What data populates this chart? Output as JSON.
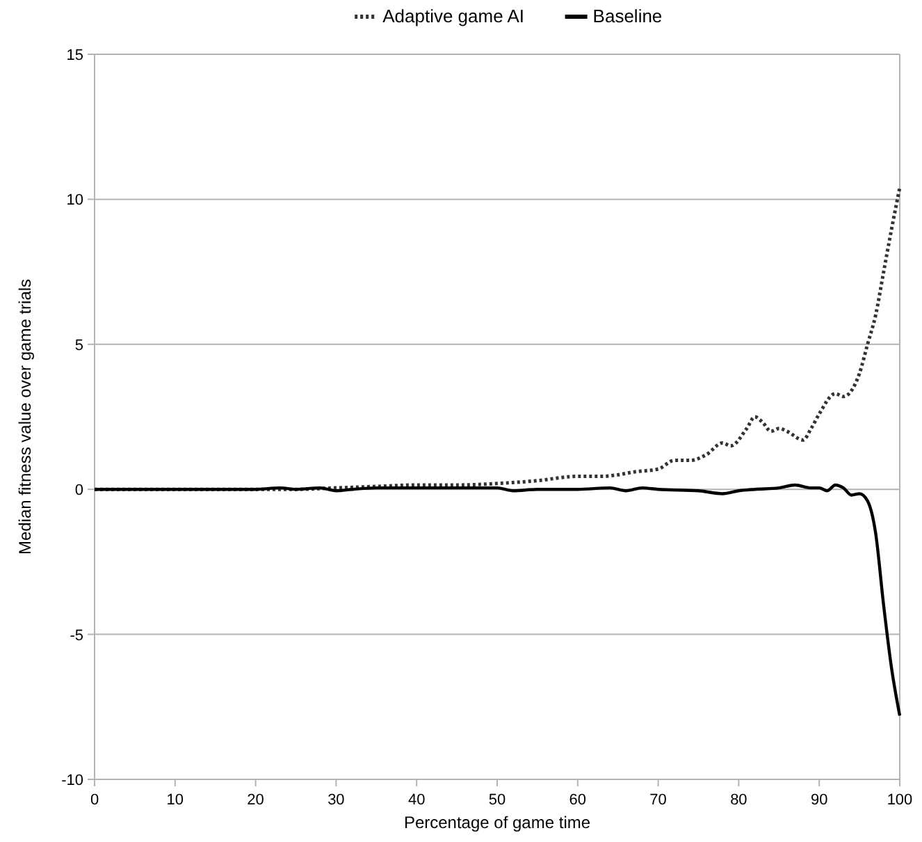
{
  "chart_data": {
    "type": "line",
    "xlabel": "Percentage of game time",
    "ylabel": "Median fitness value over game trials",
    "xlim": [
      0,
      100
    ],
    "xticks": [
      0,
      10,
      20,
      30,
      40,
      50,
      60,
      70,
      80,
      90,
      100
    ],
    "ylim": [
      -10,
      15
    ],
    "yticks": [
      -10,
      -5,
      0,
      5,
      10,
      15
    ],
    "grid": "y",
    "legend": "top",
    "series": [
      {
        "name": "Adaptive game AI",
        "color": "#333333",
        "line_style": "dotted",
        "x": [
          0,
          10,
          20,
          25,
          30,
          35,
          40,
          45,
          50,
          55,
          60,
          63,
          65,
          67,
          70,
          72,
          74,
          76,
          78,
          79,
          81,
          82,
          83,
          84,
          85,
          86,
          88,
          89,
          90,
          92,
          93,
          95,
          96,
          97,
          98,
          99,
          100
        ],
        "values": [
          0,
          0,
          0,
          0,
          0.05,
          0.1,
          0.15,
          0.15,
          0.2,
          0.3,
          0.45,
          0.45,
          0.5,
          0.6,
          0.7,
          1.0,
          1.0,
          1.2,
          1.6,
          1.5,
          2.1,
          2.5,
          2.3,
          2.0,
          2.1,
          2.0,
          1.7,
          2.1,
          2.6,
          3.3,
          3.2,
          4.0,
          5.0,
          6.0,
          7.5,
          9.0,
          10.4
        ]
      },
      {
        "name": "Baseline",
        "color": "#000000",
        "line_style": "solid",
        "x": [
          0,
          10,
          20,
          23,
          25,
          28,
          30,
          32,
          35,
          40,
          45,
          50,
          52,
          55,
          60,
          64,
          66,
          68,
          70,
          75,
          78,
          80,
          82,
          85,
          87,
          89,
          90,
          91,
          92,
          93,
          94,
          95,
          96,
          97,
          98,
          99,
          100
        ],
        "values": [
          0,
          0,
          0,
          0.05,
          0,
          0.05,
          -0.05,
          0,
          0.05,
          0.05,
          0.05,
          0.05,
          -0.05,
          0,
          0,
          0.05,
          -0.05,
          0.05,
          0,
          -0.05,
          -0.15,
          -0.05,
          0,
          0.05,
          0.15,
          0.05,
          0.05,
          -0.05,
          0.15,
          0.05,
          -0.2,
          -0.15,
          -0.4,
          -1.5,
          -4.0,
          -6.2,
          -7.8
        ]
      }
    ]
  }
}
